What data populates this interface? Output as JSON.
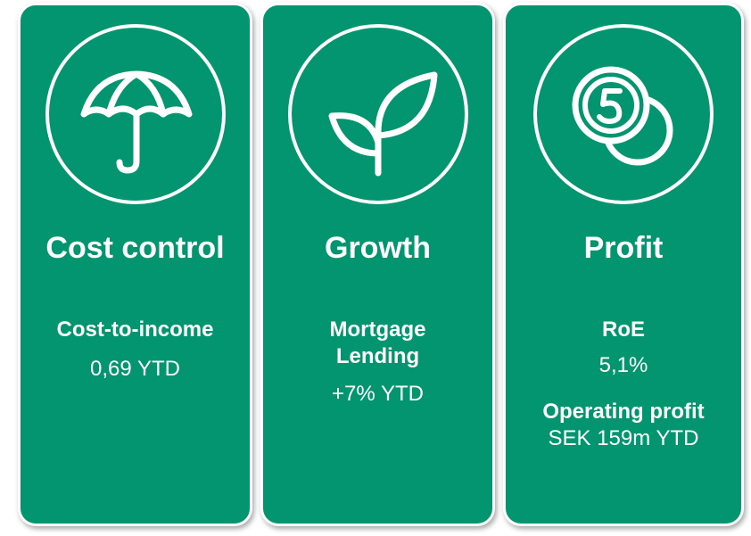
{
  "cards": [
    {
      "title": "Cost control",
      "metrics": [
        {
          "label": "Cost-to-income",
          "value": "0,69 YTD"
        }
      ]
    },
    {
      "title": "Growth",
      "metrics": [
        {
          "label": "Mortgage Lending",
          "value": "+7% YTD"
        }
      ]
    },
    {
      "title": "Profit",
      "metrics": [
        {
          "label": "RoE",
          "value": "5,1%"
        },
        {
          "label": "Operating profit",
          "value": "SEK 159m YTD"
        }
      ]
    }
  ]
}
